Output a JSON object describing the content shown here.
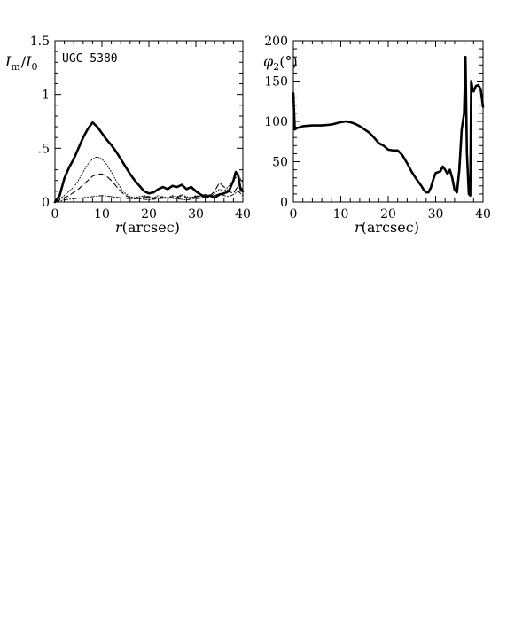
{
  "chart_data": [
    {
      "type": "line",
      "panel": "left",
      "annotation": "UGC 5380",
      "xlabel_var": "r",
      "xlabel_unit": "(arcsec)",
      "ylabel": "I_m/I_0",
      "ylabel_main": "I",
      "ylabel_sub_num": "m",
      "ylabel_slash": "/",
      "ylabel_den_main": "I",
      "ylabel_sub_den": "0",
      "xlim": [
        0,
        40
      ],
      "ylim": [
        0,
        1.5
      ],
      "xticks": [
        0,
        10,
        20,
        30,
        40
      ],
      "xtick_labels": [
        "0",
        "10",
        "20",
        "30",
        "40"
      ],
      "yticks": [
        0,
        0.5,
        1,
        1.5
      ],
      "ytick_labels": [
        "0",
        ".5",
        "1",
        "1.5"
      ],
      "series": [
        {
          "style": "solid-thick",
          "color": "#000000",
          "x": [
            0,
            1,
            2,
            3,
            4,
            5,
            6,
            7,
            8,
            9,
            10,
            11,
            12,
            13,
            14,
            15,
            16,
            17,
            18,
            19,
            20,
            21,
            22,
            23,
            24,
            25,
            26,
            27,
            28,
            29,
            30,
            31,
            32,
            33,
            34,
            35,
            36,
            37,
            38,
            38.5,
            39,
            39.5,
            40
          ],
          "values": [
            0.0,
            0.06,
            0.22,
            0.32,
            0.4,
            0.5,
            0.6,
            0.68,
            0.74,
            0.7,
            0.64,
            0.58,
            0.53,
            0.47,
            0.4,
            0.33,
            0.26,
            0.2,
            0.15,
            0.1,
            0.08,
            0.09,
            0.12,
            0.14,
            0.12,
            0.15,
            0.14,
            0.16,
            0.12,
            0.14,
            0.1,
            0.07,
            0.05,
            0.06,
            0.04,
            0.07,
            0.08,
            0.1,
            0.2,
            0.28,
            0.25,
            0.12,
            0.1
          ]
        },
        {
          "style": "dotted",
          "color": "#000000",
          "x": [
            0,
            1,
            2,
            3,
            4,
            5,
            6,
            7,
            8,
            9,
            10,
            11,
            12,
            13,
            14,
            15,
            16,
            17,
            18,
            19,
            20,
            21,
            22,
            23,
            24,
            25,
            26,
            27,
            28,
            29,
            30,
            31,
            32,
            33,
            34,
            35,
            36,
            37,
            38,
            39,
            40
          ],
          "values": [
            0.0,
            0.03,
            0.06,
            0.1,
            0.14,
            0.2,
            0.28,
            0.35,
            0.4,
            0.42,
            0.4,
            0.35,
            0.28,
            0.2,
            0.13,
            0.08,
            0.05,
            0.04,
            0.05,
            0.06,
            0.05,
            0.04,
            0.06,
            0.05,
            0.04,
            0.06,
            0.05,
            0.07,
            0.05,
            0.04,
            0.06,
            0.05,
            0.04,
            0.05,
            0.08,
            0.12,
            0.1,
            0.15,
            0.2,
            0.25,
            0.18
          ]
        },
        {
          "style": "dashed",
          "color": "#000000",
          "x": [
            0,
            1,
            2,
            3,
            4,
            5,
            6,
            7,
            8,
            9,
            10,
            11,
            12,
            13,
            14,
            15,
            16,
            17,
            18,
            19,
            20,
            21,
            22,
            23,
            24,
            25,
            26,
            27,
            28,
            29,
            30,
            31,
            32,
            33,
            34,
            35,
            36,
            37,
            38,
            39,
            40
          ],
          "values": [
            0.0,
            0.02,
            0.04,
            0.06,
            0.09,
            0.12,
            0.16,
            0.2,
            0.24,
            0.26,
            0.26,
            0.24,
            0.2,
            0.15,
            0.1,
            0.06,
            0.04,
            0.03,
            0.04,
            0.05,
            0.04,
            0.03,
            0.05,
            0.04,
            0.03,
            0.05,
            0.04,
            0.06,
            0.04,
            0.03,
            0.05,
            0.05,
            0.07,
            0.06,
            0.1,
            0.18,
            0.14,
            0.1,
            0.08,
            0.15,
            0.12
          ]
        },
        {
          "style": "dash-dot",
          "color": "#000000",
          "x": [
            0,
            2,
            4,
            6,
            8,
            10,
            12,
            14,
            16,
            18,
            20,
            22,
            24,
            26,
            28,
            30,
            32,
            34,
            35,
            36,
            37,
            38,
            39,
            40
          ],
          "values": [
            0.0,
            0.02,
            0.03,
            0.04,
            0.05,
            0.06,
            0.05,
            0.04,
            0.03,
            0.03,
            0.02,
            0.03,
            0.04,
            0.03,
            0.02,
            0.03,
            0.04,
            0.06,
            0.08,
            0.06,
            0.05,
            0.07,
            0.1,
            0.06
          ]
        }
      ]
    },
    {
      "type": "line",
      "panel": "right",
      "xlabel_var": "r",
      "xlabel_unit": "(arcsec)",
      "ylabel": "φ2(°)",
      "ylabel_main": "φ",
      "ylabel_sub": "2",
      "ylabel_unit": "(°)",
      "xlim": [
        0,
        40
      ],
      "ylim": [
        0,
        200
      ],
      "xticks": [
        0,
        10,
        20,
        30,
        40
      ],
      "xtick_labels": [
        "0",
        "10",
        "20",
        "30",
        "40"
      ],
      "yticks": [
        0,
        50,
        100,
        150,
        200
      ],
      "ytick_labels": [
        "0",
        "50",
        "100",
        "150",
        "200"
      ],
      "series": [
        {
          "style": "solid-thick",
          "color": "#000000",
          "x": [
            0.0,
            0.3,
            0.6,
            1,
            2,
            4,
            6,
            8,
            10,
            11,
            12,
            13,
            14,
            15,
            16,
            17,
            18,
            19,
            20,
            21,
            22,
            23,
            24,
            25,
            26,
            27,
            27.5,
            28,
            28.5,
            29,
            29.5,
            30,
            31,
            31.5,
            32,
            32.5,
            33,
            33.5,
            34,
            34.5,
            35,
            35.5,
            36,
            36.3,
            36.6,
            37,
            37.3,
            37.5,
            37.8,
            38,
            38.5,
            39,
            39.5,
            40
          ],
          "values": [
            135,
            90,
            92,
            92,
            94,
            95,
            95,
            96,
            99,
            100,
            99,
            97,
            94,
            90,
            86,
            80,
            73,
            70,
            65,
            64,
            64,
            58,
            48,
            37,
            28,
            20,
            15,
            12,
            12,
            18,
            28,
            36,
            38,
            44,
            40,
            35,
            40,
            30,
            15,
            12,
            40,
            90,
            110,
            180,
            60,
            10,
            8,
            150,
            140,
            137,
            144,
            145,
            140,
            118
          ]
        }
      ]
    }
  ]
}
